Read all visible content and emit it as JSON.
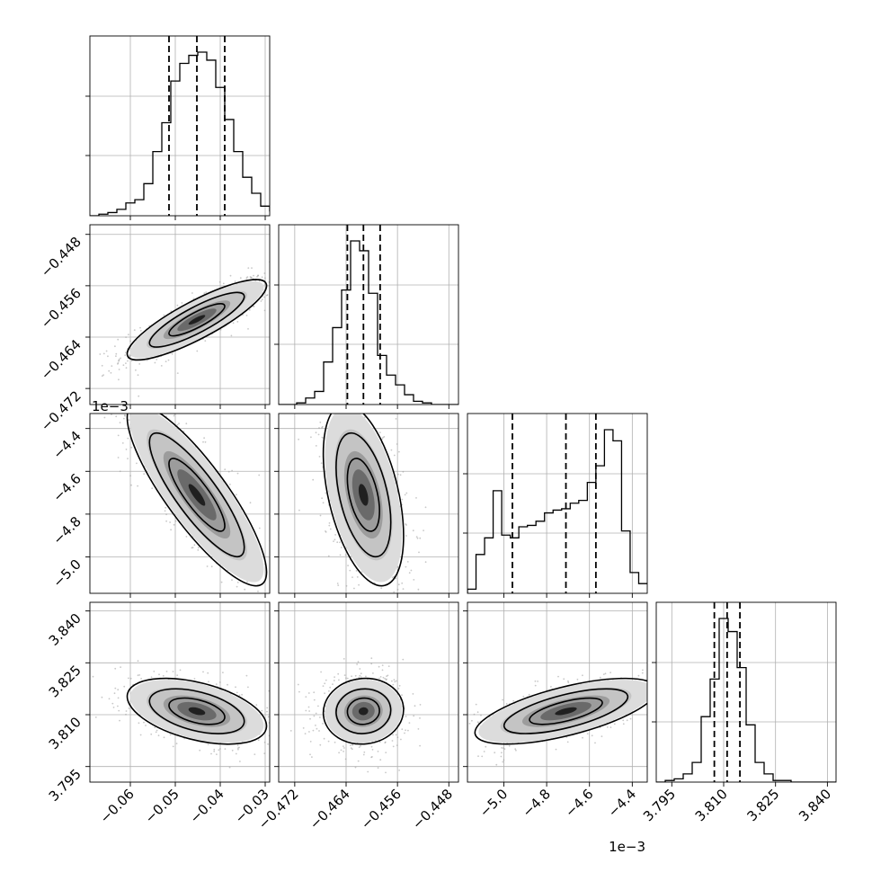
{
  "chart_data": {
    "type": "corner",
    "grid": true,
    "parameters": [
      {
        "range": [
          -0.069,
          -0.029
        ],
        "ticks": [
          -0.06,
          -0.05,
          -0.04,
          -0.03
        ],
        "tick_labels": [
          "−0.06",
          "−0.05",
          "−0.04",
          "−0.03"
        ],
        "offset_label": "",
        "quantiles": [
          -0.0514,
          -0.0452,
          -0.039
        ],
        "mean": -0.0452,
        "sd": 0.0062
      },
      {
        "range": [
          -0.4745,
          -0.4465
        ],
        "ticks": [
          -0.472,
          -0.464,
          -0.456,
          -0.448
        ],
        "tick_labels": [
          "−0.472",
          "−0.464",
          "−0.456",
          "−0.448"
        ],
        "offset_label": "",
        "quantiles": [
          -0.4638,
          -0.4613,
          -0.4587
        ],
        "mean": -0.4613,
        "sd": 0.0025
      },
      {
        "range": [
          -5.17,
          -4.33
        ],
        "ticks": [
          -5.0,
          -4.8,
          -4.6,
          -4.4
        ],
        "tick_labels": [
          "−5.0",
          "−4.8",
          "−4.6",
          "−4.4"
        ],
        "offset_label": "1e−3",
        "quantiles": [
          -4.96,
          -4.71,
          -4.57
        ],
        "mean": -4.71,
        "sd": 0.17
      },
      {
        "range": [
          3.7905,
          3.8425
        ],
        "ticks": [
          3.795,
          3.81,
          3.825,
          3.84
        ],
        "tick_labels": [
          "3.795",
          "3.810",
          "3.825",
          "3.840"
        ],
        "offset_label": "",
        "quantiles": [
          3.8073,
          3.811,
          3.8147
        ],
        "mean": 3.811,
        "sd": 0.0038
      }
    ],
    "histograms": [
      {
        "edges_start": -0.069,
        "bin_width": 0.002,
        "counts": [
          0,
          1,
          2,
          4,
          8,
          10,
          20,
          40,
          58,
          84,
          95,
          100,
          102,
          97,
          80,
          60,
          40,
          24,
          14,
          6,
          3
        ]
      },
      {
        "edges_start": -0.4745,
        "bin_width": 0.0014,
        "counts": [
          0,
          0,
          1,
          4,
          8,
          26,
          47,
          70,
          100,
          94,
          68,
          30,
          18,
          12,
          6,
          2,
          1,
          0,
          0,
          0
        ]
      },
      {
        "edges_start": -5.17,
        "bin_width": 0.04,
        "counts": [
          3,
          28,
          40,
          74,
          42,
          40,
          48,
          49,
          52,
          58,
          60,
          61,
          65,
          67,
          80,
          92,
          118,
          110,
          45,
          15,
          7
        ]
      },
      {
        "edges_start": 3.7905,
        "bin_width": 0.0026,
        "counts": [
          0,
          1,
          2,
          5,
          12,
          40,
          63,
          100,
          92,
          70,
          35,
          12,
          5,
          1,
          1,
          0,
          0,
          0,
          0,
          0
        ]
      }
    ],
    "pairs": [
      {
        "x": 0,
        "y": 1,
        "correlation": 0.85
      },
      {
        "x": 0,
        "y": 2,
        "correlation": -0.85
      },
      {
        "x": 1,
        "y": 2,
        "correlation": -0.45
      },
      {
        "x": 0,
        "y": 3,
        "correlation": -0.45
      },
      {
        "x": 1,
        "y": 3,
        "correlation": 0.05
      },
      {
        "x": 2,
        "y": 3,
        "correlation": 0.65
      }
    ]
  }
}
